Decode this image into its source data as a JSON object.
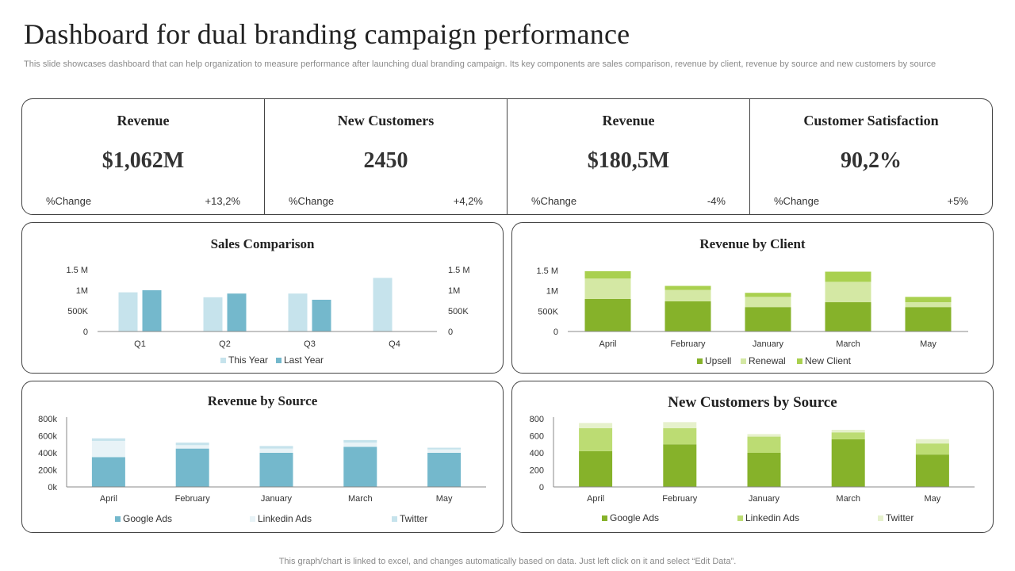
{
  "header": {
    "title": "Dashboard for dual branding campaign performance",
    "subtitle": "This slide showcases dashboard that can help organization to measure performance after launching dual branding campaign. Its key components are sales comparison, revenue by client, revenue by source and new customers by source"
  },
  "kpis": [
    {
      "label": "Revenue",
      "value": "$1,062M",
      "change_label": "%Change",
      "change": "+13,2%"
    },
    {
      "label": "New Customers",
      "value": "2450",
      "change_label": "%Change",
      "change": "+4,2%"
    },
    {
      "label": "Revenue",
      "value": "$180,5M",
      "change_label": "%Change",
      "change": "-4%"
    },
    {
      "label": "Customer Satisfaction",
      "value": "90,2%",
      "change_label": "%Change",
      "change": "+5%"
    }
  ],
  "footer": "This graph/chart is linked to excel, and changes automatically based on data. Just left click on it and select “Edit Data”.",
  "chart_data": [
    {
      "id": "sales",
      "type": "bar",
      "title": "Sales Comparison",
      "categories": [
        "Q1",
        "Q2",
        "Q3",
        "Q4"
      ],
      "series": [
        {
          "name": "This Year",
          "color": "#c6e3ec",
          "values": [
            950000,
            830000,
            920000,
            1300000
          ]
        },
        {
          "name": "Last Year",
          "color": "#74b8cc",
          "values": [
            1000000,
            920000,
            770000,
            0
          ]
        }
      ],
      "ylim": [
        0,
        1500000
      ],
      "yticks": [
        {
          "v": 0,
          "label": "0"
        },
        {
          "v": 500000,
          "label": "500K"
        },
        {
          "v": 1000000,
          "label": "1M"
        },
        {
          "v": 1500000,
          "label": "1.5 M"
        }
      ],
      "secondary_yticks": [
        {
          "v": 0,
          "label": "0"
        },
        {
          "v": 500000,
          "label": "500K"
        },
        {
          "v": 1000000,
          "label": "1M"
        },
        {
          "v": 1500000,
          "label": "1.5 M"
        }
      ]
    },
    {
      "id": "client",
      "type": "bar",
      "stacked": true,
      "title": "Revenue by Client",
      "categories": [
        "April",
        "February",
        "January",
        "March",
        "May"
      ],
      "series": [
        {
          "name": "Upsell",
          "color": "#86b22a",
          "values": [
            800000,
            740000,
            600000,
            720000,
            600000
          ]
        },
        {
          "name": "Renewal",
          "color": "#d4e8a4",
          "values": [
            500000,
            280000,
            250000,
            500000,
            120000
          ]
        },
        {
          "name": "New Client",
          "color": "#a9d04f",
          "values": [
            180000,
            100000,
            100000,
            250000,
            130000
          ]
        }
      ],
      "ylim": [
        0,
        1500000
      ],
      "yticks": [
        {
          "v": 0,
          "label": "0"
        },
        {
          "v": 500000,
          "label": "500K"
        },
        {
          "v": 1000000,
          "label": "1M"
        },
        {
          "v": 1500000,
          "label": "1.5 M"
        }
      ]
    },
    {
      "id": "revsource",
      "type": "bar",
      "stacked": true,
      "title": "Revenue by Source",
      "categories": [
        "April",
        "February",
        "January",
        "March",
        "May"
      ],
      "series": [
        {
          "name": "Google Ads",
          "color": "#74b8cc",
          "values": [
            350000,
            450000,
            400000,
            470000,
            400000
          ]
        },
        {
          "name": "Linkedin Ads",
          "color": "#e8f3f7",
          "values": [
            190000,
            40000,
            50000,
            50000,
            40000
          ]
        },
        {
          "name": "Twitter",
          "color": "#c6e3ec",
          "values": [
            30000,
            30000,
            30000,
            30000,
            20000
          ]
        }
      ],
      "ylim": [
        0,
        800000
      ],
      "yticks": [
        {
          "v": 0,
          "label": "0k"
        },
        {
          "v": 200000,
          "label": "200k"
        },
        {
          "v": 400000,
          "label": "400k"
        },
        {
          "v": 600000,
          "label": "600k"
        },
        {
          "v": 800000,
          "label": "800k"
        }
      ]
    },
    {
      "id": "custsource",
      "type": "bar",
      "stacked": true,
      "title": "New Customers  by Source",
      "categories": [
        "April",
        "February",
        "January",
        "March",
        "May"
      ],
      "series": [
        {
          "name": "Google Ads",
          "color": "#86b22a",
          "values": [
            420,
            500,
            400,
            560,
            380
          ]
        },
        {
          "name": "Linkedin Ads",
          "color": "#bcdc73",
          "values": [
            270,
            190,
            190,
            80,
            130
          ]
        },
        {
          "name": "Twitter",
          "color": "#e6f1cc",
          "values": [
            60,
            70,
            30,
            30,
            50
          ]
        }
      ],
      "ylim": [
        0,
        800
      ],
      "yticks": [
        {
          "v": 0,
          "label": "0"
        },
        {
          "v": 200,
          "label": "200"
        },
        {
          "v": 400,
          "label": "400"
        },
        {
          "v": 600,
          "label": "600"
        },
        {
          "v": 800,
          "label": "800"
        }
      ]
    }
  ]
}
